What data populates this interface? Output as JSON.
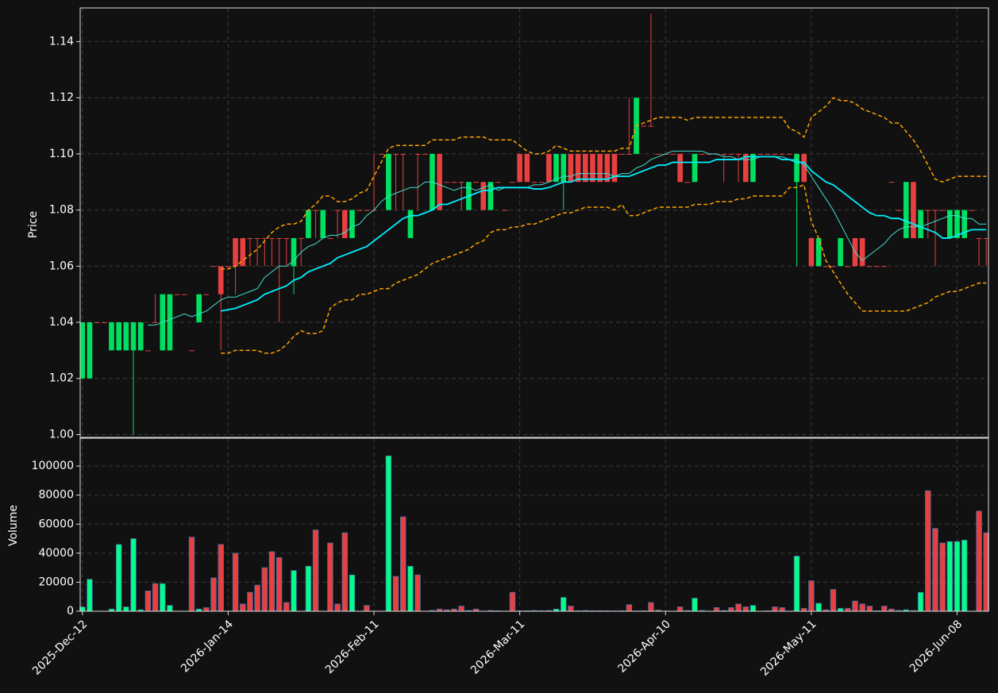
{
  "chart_data": {
    "type": "candlestick",
    "grid": true,
    "ylabel": "Price",
    "up_color": "#00e060",
    "down_color": "#e84040",
    "xlim": [
      -0.3,
      124.3
    ],
    "xticks": [
      {
        "value": 0,
        "label": "2025-Dec-12"
      },
      {
        "value": 20,
        "label": "2026-Jan-14"
      },
      {
        "value": 40,
        "label": "2026-Feb-11"
      },
      {
        "value": 60,
        "label": "2026-Mar-11"
      },
      {
        "value": 80,
        "label": "2026-Apr-10"
      },
      {
        "value": 100,
        "label": "2026-May-11"
      },
      {
        "value": 120,
        "label": "2026-Jun-08"
      }
    ],
    "ylim": [
      0.999,
      1.152
    ],
    "yticks": [
      {
        "value": 1,
        "label": "1.00"
      },
      1.02,
      1.04,
      1.06,
      1.08,
      {
        "value": 1.1,
        "label": "1.10"
      },
      1.12,
      1.14
    ],
    "open": [
      1.02,
      1.02,
      1.04,
      1.04,
      1.03,
      1.03,
      1.03,
      1.03,
      1.03,
      1.03,
      1.04,
      1.03,
      1.03,
      1.05,
      1.05,
      1.03,
      1.04,
      1.05,
      1.06,
      1.06,
      1.06,
      1.07,
      1.07,
      1.07,
      1.07,
      1.07,
      1.07,
      1.07,
      1.07,
      1.06,
      1.07,
      1.07,
      1.08,
      1.07,
      1.07,
      1.08,
      1.08,
      1.07,
      1.08,
      1.08,
      1.08,
      1.1,
      1.08,
      1.1,
      1.1,
      1.07,
      1.1,
      1.1,
      1.08,
      1.1,
      1.09,
      1.09,
      1.09,
      1.08,
      1.09,
      1.09,
      1.08,
      1.09,
      1.08,
      1.09,
      1.1,
      1.1,
      1.09,
      1.09,
      1.1,
      1.09,
      1.09,
      1.1,
      1.1,
      1.1,
      1.1,
      1.1,
      1.1,
      1.1,
      1.1,
      1.1,
      1.1,
      1.11,
      1.11,
      1.1,
      1.1,
      1.1,
      1.1,
      1.09,
      1.09,
      1.1,
      1.1,
      1.1,
      1.1,
      1.1,
      1.1,
      1.1,
      1.09,
      1.1,
      1.1,
      1.1,
      1.1,
      1.1,
      1.09,
      1.1,
      1.07,
      1.06,
      1.06,
      1.06,
      1.06,
      1.06,
      1.07,
      1.07,
      1.06,
      1.06,
      1.06,
      1.09,
      1.08,
      1.07,
      1.09,
      1.07,
      1.08,
      1.08,
      1.08,
      1.07,
      1.07,
      1.07,
      1.08,
      1.07,
      1.07
    ],
    "high": [
      1.04,
      1.04,
      1.04,
      1.04,
      1.04,
      1.04,
      1.04,
      1.04,
      1.04,
      1.03,
      1.05,
      1.05,
      1.05,
      1.05,
      1.05,
      1.03,
      1.05,
      1.05,
      1.06,
      1.06,
      1.06,
      1.07,
      1.07,
      1.07,
      1.07,
      1.07,
      1.07,
      1.07,
      1.07,
      1.07,
      1.07,
      1.08,
      1.08,
      1.08,
      1.07,
      1.08,
      1.08,
      1.08,
      1.08,
      1.08,
      1.1,
      1.1,
      1.1,
      1.1,
      1.1,
      1.08,
      1.1,
      1.1,
      1.1,
      1.1,
      1.09,
      1.09,
      1.09,
      1.09,
      1.09,
      1.09,
      1.09,
      1.09,
      1.08,
      1.09,
      1.1,
      1.1,
      1.09,
      1.09,
      1.1,
      1.1,
      1.1,
      1.1,
      1.1,
      1.1,
      1.1,
      1.1,
      1.1,
      1.1,
      1.1,
      1.12,
      1.12,
      1.11,
      1.15,
      1.1,
      1.1,
      1.1,
      1.1,
      1.09,
      1.1,
      1.1,
      1.1,
      1.1,
      1.1,
      1.1,
      1.1,
      1.1,
      1.1,
      1.1,
      1.1,
      1.1,
      1.1,
      1.1,
      1.1,
      1.1,
      1.07,
      1.07,
      1.06,
      1.06,
      1.07,
      1.06,
      1.07,
      1.07,
      1.06,
      1.06,
      1.06,
      1.09,
      1.08,
      1.09,
      1.09,
      1.08,
      1.08,
      1.08,
      1.08,
      1.08,
      1.08,
      1.08,
      1.08,
      1.07,
      1.07
    ],
    "low": [
      1.02,
      1.02,
      1.04,
      1.04,
      1.03,
      1.03,
      1.03,
      1.0,
      1.03,
      1.03,
      1.04,
      1.03,
      1.03,
      1.05,
      1.05,
      1.03,
      1.04,
      1.05,
      1.06,
      1.03,
      1.06,
      1.05,
      1.06,
      1.06,
      1.06,
      1.06,
      1.06,
      1.04,
      1.06,
      1.05,
      1.06,
      1.07,
      1.07,
      1.07,
      1.07,
      1.07,
      1.07,
      1.07,
      1.08,
      1.08,
      1.08,
      1.1,
      1.08,
      1.08,
      1.08,
      1.07,
      1.08,
      1.1,
      1.08,
      1.08,
      1.09,
      1.09,
      1.08,
      1.08,
      1.09,
      1.08,
      1.08,
      1.09,
      1.08,
      1.09,
      1.09,
      1.09,
      1.09,
      1.09,
      1.09,
      1.09,
      1.08,
      1.09,
      1.09,
      1.09,
      1.09,
      1.09,
      1.09,
      1.09,
      1.1,
      1.1,
      1.1,
      1.11,
      1.11,
      1.1,
      1.1,
      1.1,
      1.09,
      1.09,
      1.09,
      1.1,
      1.1,
      1.1,
      1.09,
      1.1,
      1.09,
      1.09,
      1.09,
      1.1,
      1.1,
      1.1,
      1.1,
      1.1,
      1.06,
      1.09,
      1.06,
      1.06,
      1.06,
      1.06,
      1.06,
      1.06,
      1.06,
      1.06,
      1.06,
      1.06,
      1.06,
      1.09,
      1.08,
      1.07,
      1.07,
      1.07,
      1.07,
      1.06,
      1.08,
      1.07,
      1.07,
      1.07,
      1.08,
      1.06,
      1.06
    ],
    "close": [
      1.04,
      1.04,
      1.04,
      1.04,
      1.04,
      1.04,
      1.04,
      1.04,
      1.04,
      1.03,
      1.04,
      1.05,
      1.05,
      1.05,
      1.05,
      1.03,
      1.05,
      1.05,
      1.06,
      1.05,
      1.06,
      1.06,
      1.06,
      1.07,
      1.07,
      1.07,
      1.07,
      1.07,
      1.07,
      1.07,
      1.07,
      1.08,
      1.08,
      1.08,
      1.07,
      1.08,
      1.07,
      1.08,
      1.08,
      1.08,
      1.08,
      1.1,
      1.1,
      1.1,
      1.1,
      1.08,
      1.1,
      1.1,
      1.1,
      1.08,
      1.09,
      1.09,
      1.09,
      1.09,
      1.09,
      1.08,
      1.09,
      1.09,
      1.08,
      1.09,
      1.09,
      1.09,
      1.09,
      1.09,
      1.09,
      1.1,
      1.1,
      1.09,
      1.09,
      1.09,
      1.09,
      1.09,
      1.09,
      1.09,
      1.1,
      1.1,
      1.12,
      1.11,
      1.11,
      1.1,
      1.1,
      1.1,
      1.09,
      1.09,
      1.1,
      1.1,
      1.1,
      1.1,
      1.1,
      1.1,
      1.1,
      1.09,
      1.1,
      1.1,
      1.1,
      1.1,
      1.1,
      1.1,
      1.1,
      1.09,
      1.06,
      1.07,
      1.06,
      1.06,
      1.07,
      1.06,
      1.06,
      1.06,
      1.06,
      1.06,
      1.06,
      1.09,
      1.08,
      1.09,
      1.07,
      1.08,
      1.08,
      1.08,
      1.08,
      1.08,
      1.08,
      1.08,
      1.08,
      1.07,
      1.07
    ],
    "lines": [
      {
        "color": "#40e0d0",
        "width": 1,
        "dash": false,
        "values": [
          null,
          null,
          null,
          null,
          null,
          null,
          null,
          null,
          null,
          1.039,
          1.039,
          1.04,
          1.041,
          1.042,
          1.043,
          1.042,
          1.043,
          1.044,
          1.046,
          1.048,
          1.049,
          1.049,
          1.05,
          1.051,
          1.052,
          1.056,
          1.058,
          1.06,
          1.06,
          1.062,
          1.065,
          1.067,
          1.068,
          1.07,
          1.071,
          1.071,
          1.072,
          1.074,
          1.075,
          1.078,
          1.08,
          1.083,
          1.085,
          1.086,
          1.087,
          1.088,
          1.088,
          1.09,
          1.09,
          1.089,
          1.088,
          1.087,
          1.088,
          1.088,
          1.087,
          1.088,
          1.089,
          1.087,
          1.088,
          1.088,
          1.088,
          1.088,
          1.089,
          1.089,
          1.09,
          1.091,
          1.092,
          1.092,
          1.093,
          1.093,
          1.093,
          1.093,
          1.093,
          1.092,
          1.093,
          1.093,
          1.095,
          1.096,
          1.098,
          1.099,
          1.1,
          1.101,
          1.101,
          1.101,
          1.101,
          1.101,
          1.1,
          1.1,
          1.099,
          1.099,
          1.098,
          1.098,
          1.098,
          1.099,
          1.099,
          1.099,
          1.099,
          1.098,
          1.098,
          1.096,
          1.092,
          1.088,
          1.084,
          1.08,
          1.075,
          1.07,
          1.065,
          1.062,
          1.064,
          1.066,
          1.068,
          1.071,
          1.073,
          1.074,
          1.074,
          1.074,
          1.075,
          1.076,
          1.077,
          1.078,
          1.078,
          1.077,
          1.077,
          1.075,
          1.075
        ]
      },
      {
        "color": "#00f0ff",
        "width": 1.8,
        "dash": false,
        "values": [
          null,
          null,
          null,
          null,
          null,
          null,
          null,
          null,
          null,
          null,
          null,
          null,
          null,
          null,
          null,
          null,
          null,
          null,
          null,
          1.044,
          1.0445,
          1.045,
          1.046,
          1.047,
          1.048,
          1.05,
          1.051,
          1.052,
          1.053,
          1.055,
          1.056,
          1.058,
          1.059,
          1.06,
          1.061,
          1.063,
          1.064,
          1.065,
          1.066,
          1.067,
          1.069,
          1.071,
          1.073,
          1.075,
          1.077,
          1.078,
          1.078,
          1.079,
          1.08,
          1.082,
          1.082,
          1.083,
          1.084,
          1.085,
          1.086,
          1.087,
          1.087,
          1.088,
          1.088,
          1.088,
          1.088,
          1.088,
          1.0875,
          1.0875,
          1.088,
          1.089,
          1.09,
          1.09,
          1.091,
          1.091,
          1.091,
          1.091,
          1.091,
          1.092,
          1.092,
          1.092,
          1.093,
          1.094,
          1.095,
          1.096,
          1.096,
          1.097,
          1.097,
          1.097,
          1.097,
          1.097,
          1.097,
          1.098,
          1.098,
          1.098,
          1.098,
          1.099,
          1.099,
          1.099,
          1.099,
          1.099,
          1.098,
          1.098,
          1.097,
          1.097,
          1.094,
          1.092,
          1.09,
          1.089,
          1.087,
          1.085,
          1.083,
          1.081,
          1.079,
          1.078,
          1.078,
          1.077,
          1.077,
          1.076,
          1.075,
          1.074,
          1.073,
          1.072,
          1.07,
          1.07,
          1.071,
          1.072,
          1.073,
          1.073,
          1.073
        ]
      },
      {
        "color": "#ffa500",
        "width": 1.5,
        "dash": true,
        "values": [
          null,
          null,
          null,
          null,
          null,
          null,
          null,
          null,
          null,
          null,
          null,
          null,
          null,
          null,
          null,
          null,
          null,
          null,
          null,
          1.059,
          1.059,
          1.06,
          1.062,
          1.064,
          1.066,
          1.069,
          1.072,
          1.074,
          1.075,
          1.075,
          1.076,
          1.08,
          1.082,
          1.085,
          1.085,
          1.083,
          1.083,
          1.084,
          1.086,
          1.087,
          1.092,
          1.097,
          1.102,
          1.103,
          1.103,
          1.103,
          1.103,
          1.103,
          1.105,
          1.105,
          1.105,
          1.105,
          1.106,
          1.106,
          1.106,
          1.106,
          1.105,
          1.105,
          1.105,
          1.105,
          1.103,
          1.101,
          1.1,
          1.1,
          1.101,
          1.103,
          1.102,
          1.101,
          1.101,
          1.101,
          1.101,
          1.101,
          1.101,
          1.101,
          1.102,
          1.102,
          1.11,
          1.111,
          1.112,
          1.113,
          1.113,
          1.113,
          1.113,
          1.112,
          1.113,
          1.113,
          1.113,
          1.113,
          1.113,
          1.113,
          1.113,
          1.113,
          1.113,
          1.113,
          1.113,
          1.113,
          1.113,
          1.109,
          1.108,
          1.106,
          1.113,
          1.115,
          1.117,
          1.12,
          1.119,
          1.119,
          1.118,
          1.116,
          1.115,
          1.114,
          1.113,
          1.111,
          1.111,
          1.108,
          1.105,
          1.101,
          1.096,
          1.091,
          1.09,
          1.091,
          1.092,
          1.092,
          1.092,
          1.092,
          1.092
        ]
      },
      {
        "color": "#ffa500",
        "width": 1.5,
        "dash": true,
        "values": [
          null,
          null,
          null,
          null,
          null,
          null,
          null,
          null,
          null,
          null,
          null,
          null,
          null,
          null,
          null,
          null,
          null,
          null,
          null,
          1.029,
          1.029,
          1.03,
          1.03,
          1.03,
          1.03,
          1.029,
          1.029,
          1.03,
          1.032,
          1.035,
          1.037,
          1.036,
          1.036,
          1.037,
          1.045,
          1.047,
          1.048,
          1.048,
          1.05,
          1.05,
          1.051,
          1.052,
          1.052,
          1.054,
          1.055,
          1.056,
          1.057,
          1.059,
          1.061,
          1.062,
          1.063,
          1.064,
          1.065,
          1.066,
          1.068,
          1.069,
          1.072,
          1.073,
          1.073,
          1.074,
          1.074,
          1.075,
          1.075,
          1.076,
          1.077,
          1.078,
          1.079,
          1.079,
          1.08,
          1.081,
          1.081,
          1.081,
          1.081,
          1.08,
          1.082,
          1.078,
          1.078,
          1.079,
          1.08,
          1.081,
          1.081,
          1.081,
          1.081,
          1.081,
          1.082,
          1.082,
          1.082,
          1.083,
          1.083,
          1.083,
          1.084,
          1.084,
          1.085,
          1.085,
          1.085,
          1.085,
          1.085,
          1.088,
          1.088,
          1.089,
          1.076,
          1.07,
          1.062,
          1.058,
          1.054,
          1.05,
          1.047,
          1.044,
          1.044,
          1.044,
          1.044,
          1.044,
          1.044,
          1.044,
          1.045,
          1.046,
          1.047,
          1.049,
          1.05,
          1.051,
          1.051,
          1.052,
          1.053,
          1.054,
          1.054
        ]
      }
    ],
    "volume": {
      "ylabel": "Volume",
      "ylim": [
        0,
        119200
      ],
      "yticks": [
        0,
        20000,
        40000,
        60000,
        80000,
        100000
      ],
      "values": [
        3000,
        22000,
        0,
        0,
        1500,
        46000,
        3000,
        50000,
        1000,
        14000,
        19000,
        19000,
        4000,
        0,
        0,
        51000,
        1500,
        2500,
        23000,
        46000,
        0,
        40000,
        5000,
        13000,
        18000,
        30000,
        41000,
        37000,
        6000,
        28000,
        0,
        31000,
        56000,
        0,
        47000,
        5000,
        54000,
        25000,
        0,
        4000,
        0,
        0,
        107000,
        24000,
        65000,
        31000,
        25000,
        0,
        500,
        1500,
        1000,
        1500,
        3500,
        500,
        1500,
        0,
        500,
        300,
        0,
        13000,
        200,
        300,
        500,
        300,
        500,
        1500,
        9500,
        3500,
        300,
        500,
        300,
        300,
        300,
        200,
        300,
        4500,
        200,
        300,
        6000,
        800,
        0,
        0,
        3000,
        500,
        9000,
        500,
        0,
        2500,
        500,
        2500,
        5000,
        3000,
        4000,
        0,
        300,
        3000,
        2500,
        0,
        38000,
        2000,
        21000,
        5500,
        1000,
        15000,
        2000,
        2000,
        7000,
        5000,
        3500,
        300,
        3500,
        1500,
        500,
        1000,
        500,
        13000,
        83000,
        57000,
        47000,
        48000,
        48000,
        49000,
        0,
        69000,
        54000
      ]
    }
  }
}
